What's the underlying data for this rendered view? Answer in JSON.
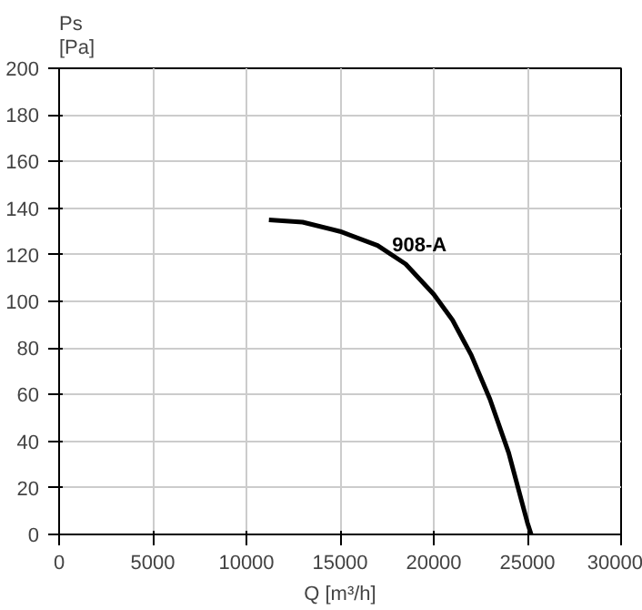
{
  "chart_data": {
    "type": "line",
    "xlabel": "Q [m³/h]",
    "ylabel": "Ps\n[Pa]",
    "xlim": [
      0,
      30000
    ],
    "ylim": [
      0,
      200
    ],
    "xticks": [
      0,
      5000,
      10000,
      15000,
      20000,
      25000,
      30000
    ],
    "yticks": [
      0,
      20,
      40,
      60,
      80,
      100,
      120,
      140,
      160,
      180,
      200
    ],
    "grid": true,
    "marker": "none",
    "line_style": "solid",
    "series": [
      {
        "name": "908-A",
        "color": "#000000",
        "x": [
          11200,
          13000,
          15000,
          17000,
          18500,
          20000,
          21000,
          22000,
          23000,
          24000,
          25000,
          25200
        ],
        "values": [
          135,
          134,
          130,
          124,
          116,
          103,
          92,
          77,
          58,
          35,
          5,
          0
        ]
      }
    ]
  }
}
